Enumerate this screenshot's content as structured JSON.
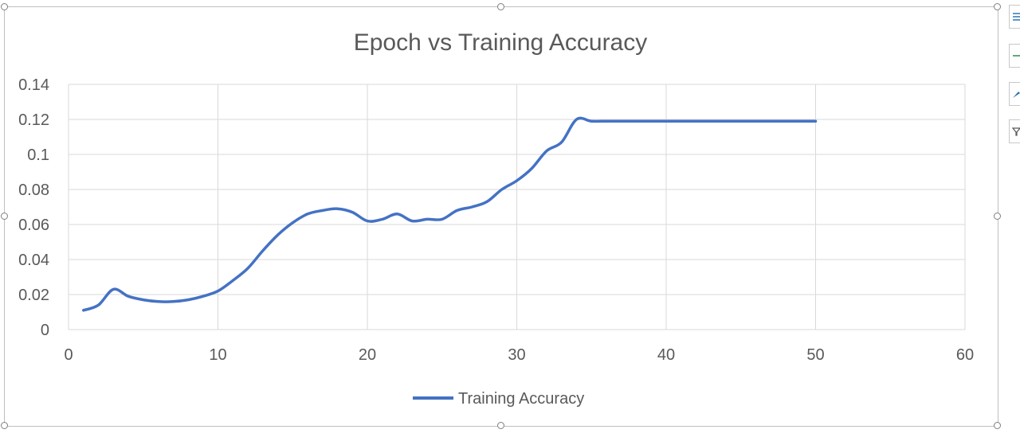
{
  "chart_data": {
    "type": "line",
    "title": "Epoch vs Training Accuracy",
    "xlabel": "",
    "ylabel": "",
    "xlim": [
      0,
      60
    ],
    "ylim": [
      0,
      0.14
    ],
    "x_ticks": [
      "0",
      "10",
      "20",
      "30",
      "40",
      "50",
      "60"
    ],
    "y_ticks": [
      "0",
      "0.02",
      "0.04",
      "0.06",
      "0.08",
      "0.1",
      "0.12",
      "0.14"
    ],
    "grid": true,
    "legend_position": "bottom",
    "series": [
      {
        "name": "Training Accuracy",
        "color": "#4472c4",
        "x": [
          1,
          2,
          3,
          4,
          5,
          6,
          7,
          8,
          9,
          10,
          11,
          12,
          13,
          14,
          15,
          16,
          17,
          18,
          19,
          20,
          21,
          22,
          23,
          24,
          25,
          26,
          27,
          28,
          29,
          30,
          31,
          32,
          33,
          34,
          35,
          36,
          37,
          38,
          39,
          40,
          41,
          42,
          43,
          44,
          45,
          46,
          47,
          48,
          49,
          50
        ],
        "y": [
          0.011,
          0.014,
          0.023,
          0.019,
          0.017,
          0.016,
          0.016,
          0.017,
          0.019,
          0.022,
          0.028,
          0.035,
          0.045,
          0.054,
          0.061,
          0.066,
          0.068,
          0.069,
          0.067,
          0.062,
          0.063,
          0.066,
          0.062,
          0.063,
          0.063,
          0.068,
          0.07,
          0.073,
          0.08,
          0.085,
          0.092,
          0.102,
          0.107,
          0.12,
          0.119,
          0.119,
          0.119,
          0.119,
          0.119,
          0.119,
          0.119,
          0.119,
          0.119,
          0.119,
          0.119,
          0.119,
          0.119,
          0.119,
          0.119,
          0.119
        ]
      }
    ]
  },
  "side_tools": [
    {
      "icon": "chart-elements-icon"
    },
    {
      "icon": "chart-styles-icon"
    },
    {
      "icon": "chart-filters-brush-icon"
    },
    {
      "icon": "chart-filters-icon"
    }
  ]
}
